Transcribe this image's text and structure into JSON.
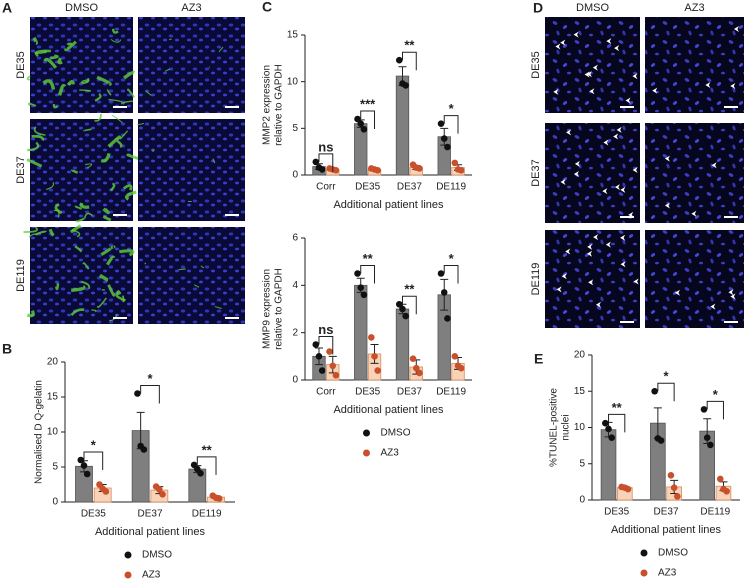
{
  "panels": {
    "A": {
      "letter": "A",
      "columns": [
        "DMSO",
        "AZ3"
      ],
      "rows": [
        "DE35",
        "DE37",
        "DE119"
      ]
    },
    "D": {
      "letter": "D",
      "columns": [
        "DMSO",
        "AZ3"
      ],
      "rows": [
        "DE35",
        "DE37",
        "DE119"
      ]
    }
  },
  "chart_data": [
    {
      "type": "bar",
      "label": "B",
      "ylabel": [
        "Normalised D Q-gelatin"
      ],
      "xlabel": "Additional patient lines",
      "categories": [
        "DE35",
        "DE37",
        "DE119"
      ],
      "ylim": [
        0,
        20
      ],
      "yticks": [
        0,
        5,
        10,
        15,
        20
      ],
      "series": [
        {
          "name": "DMSO",
          "color": "#7f7f7f",
          "point_color": "#111111",
          "values": [
            5.1,
            10.2,
            4.7
          ],
          "errors": [
            0.8,
            2.6,
            0.5
          ],
          "points": [
            [
              6.0,
              5.2,
              4.0
            ],
            [
              15.5,
              8.0,
              7.5
            ],
            [
              5.3,
              4.7,
              4.1
            ]
          ]
        },
        {
          "name": "AZ3",
          "color": "#f8d3b8",
          "point_color": "#c8502a",
          "values": [
            2.0,
            1.7,
            0.7
          ],
          "errors": [
            0.5,
            0.5,
            0.2
          ],
          "points": [
            [
              2.5,
              1.9,
              1.5
            ],
            [
              2.2,
              1.8,
              1.1
            ],
            [
              0.9,
              0.6,
              0.5
            ]
          ]
        }
      ],
      "significance": [
        "*",
        "*",
        "**"
      ]
    },
    {
      "type": "bar",
      "label": "C",
      "ylabel": [
        "MMP2 expression",
        "relative to GAPDH"
      ],
      "xlabel": "Additional patient lines",
      "categories": [
        "Corr",
        "DE35",
        "DE37",
        "DE119"
      ],
      "ylim": [
        0,
        15
      ],
      "yticks": [
        0,
        5,
        10,
        15
      ],
      "series": [
        {
          "name": "DMSO",
          "color": "#7f7f7f",
          "point_color": "#111111",
          "values": [
            0.9,
            5.5,
            10.6,
            4.1
          ],
          "errors": [
            0.3,
            0.4,
            1.0,
            0.9
          ],
          "points": [
            [
              1.4,
              0.8,
              0.6
            ],
            [
              6.0,
              5.5,
              4.9
            ],
            [
              12.3,
              9.8,
              9.6
            ],
            [
              5.5,
              3.9,
              3.0
            ]
          ]
        },
        {
          "name": "AZ3",
          "color": "#f8d3b8",
          "point_color": "#c8502a",
          "values": [
            0.6,
            0.6,
            0.8,
            0.8
          ],
          "errors": [
            0.1,
            0.1,
            0.2,
            0.3
          ],
          "points": [
            [
              0.7,
              0.6,
              0.5
            ],
            [
              0.7,
              0.6,
              0.5
            ],
            [
              1.1,
              0.8,
              0.7
            ],
            [
              1.3,
              0.6,
              0.5
            ]
          ]
        }
      ],
      "significance": [
        "ns",
        "***",
        "**",
        "*"
      ]
    },
    {
      "type": "bar",
      "ylabel": [
        "MMP9 expression",
        "relative to  GAPDH"
      ],
      "xlabel": "Additional patient lines",
      "categories": [
        "Corr",
        "DE35",
        "DE37",
        "DE119"
      ],
      "ylim": [
        0,
        6
      ],
      "yticks": [
        0,
        2,
        4,
        6
      ],
      "series": [
        {
          "name": "DMSO",
          "color": "#7f7f7f",
          "point_color": "#111111",
          "values": [
            1.0,
            4.0,
            3.0,
            3.6
          ],
          "errors": [
            0.35,
            0.3,
            0.2,
            0.65
          ],
          "points": [
            [
              1.5,
              1.0,
              0.4
            ],
            [
              4.5,
              3.9,
              3.6
            ],
            [
              3.2,
              3.0,
              2.7
            ],
            [
              4.5,
              3.7,
              2.6
            ]
          ]
        },
        {
          "name": "AZ3",
          "color": "#f8d3b8",
          "point_color": "#c8502a",
          "values": [
            0.65,
            1.1,
            0.55,
            0.7
          ],
          "errors": [
            0.35,
            0.4,
            0.3,
            0.25
          ],
          "points": [
            [
              1.2,
              0.6,
              0.2
            ],
            [
              1.8,
              1.0,
              0.4
            ],
            [
              0.9,
              0.5,
              0.3
            ],
            [
              1.0,
              0.6,
              0.5
            ]
          ]
        }
      ],
      "significance": [
        "ns",
        "**",
        "**",
        "*"
      ]
    },
    {
      "type": "bar",
      "label": "E",
      "ylabel": [
        "%TUNEL-positive",
        "nuclei"
      ],
      "xlabel": "Additional patient lines",
      "categories": [
        "DE35",
        "DE37",
        "DE119"
      ],
      "ylim": [
        0,
        20
      ],
      "yticks": [
        0,
        5,
        10,
        15,
        20
      ],
      "series": [
        {
          "name": "DMSO",
          "color": "#7f7f7f",
          "point_color": "#111111",
          "values": [
            9.7,
            10.6,
            9.5
          ],
          "errors": [
            1.0,
            2.1,
            1.7
          ],
          "points": [
            [
              10.6,
              9.8,
              8.6
            ],
            [
              15.0,
              8.5,
              8.2
            ],
            [
              12.5,
              8.6,
              7.6
            ]
          ]
        },
        {
          "name": "AZ3",
          "color": "#f8d3b8",
          "point_color": "#c8502a",
          "values": [
            1.7,
            1.8,
            1.9
          ],
          "errors": [
            0.2,
            0.9,
            0.6
          ],
          "points": [
            [
              1.8,
              1.7,
              1.5
            ],
            [
              3.4,
              1.7,
              0.5
            ],
            [
              2.9,
              1.5,
              1.2
            ]
          ]
        }
      ],
      "significance": [
        "**",
        "*",
        "*"
      ]
    }
  ]
}
